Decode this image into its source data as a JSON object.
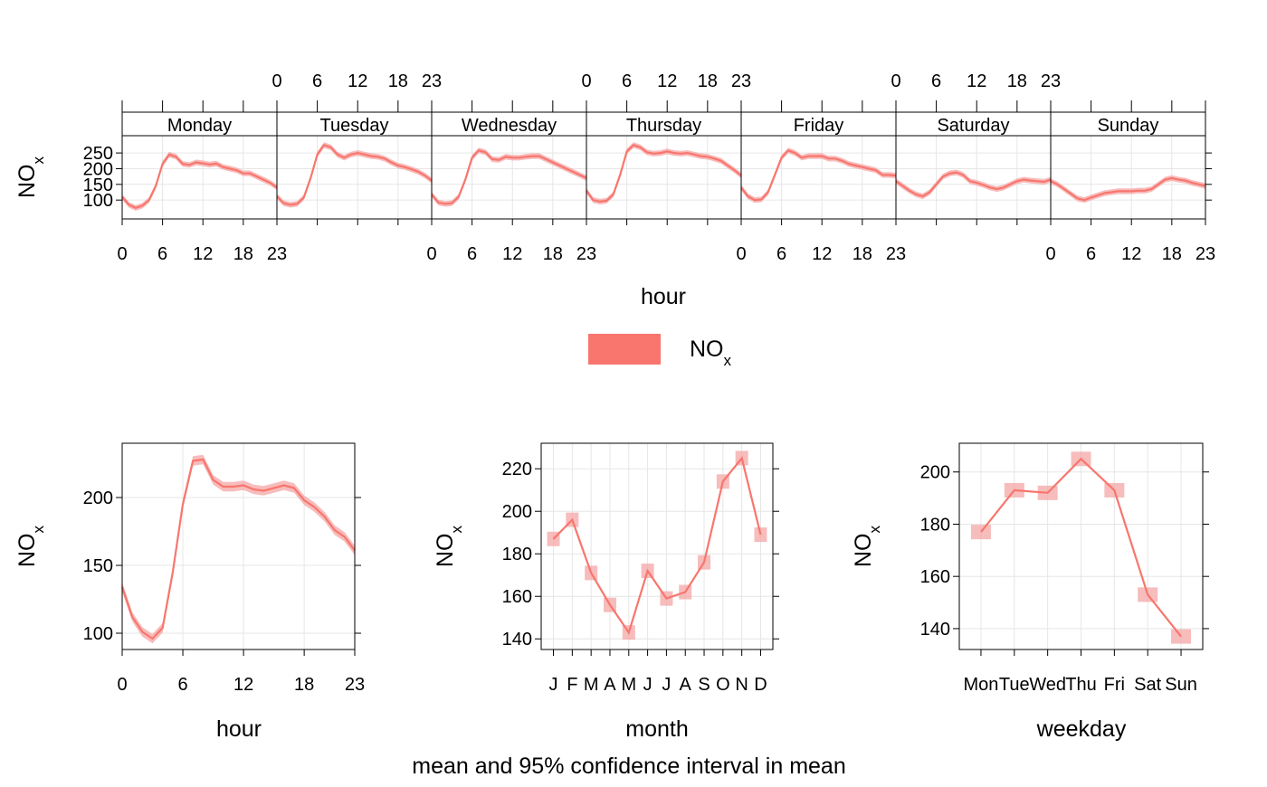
{
  "chart_data": [
    {
      "type": "line",
      "panel": "hour by weekday",
      "pollutant": "NO",
      "pollutant_sub": "x",
      "ylabel": "NO",
      "ylabel_sub": "x",
      "xlabel": "hour",
      "ylim": [
        40,
        305
      ],
      "yticks": [
        100,
        150,
        200,
        250
      ],
      "xlim": [
        0,
        23
      ],
      "xticks": [
        0,
        6,
        12,
        18,
        23
      ],
      "grid": true,
      "color": "#F8766D",
      "band_color": "#F4A6A6",
      "facets": [
        {
          "name": "Monday",
          "values": [
            110,
            85,
            75,
            82,
            100,
            145,
            215,
            245,
            238,
            215,
            212,
            220,
            217,
            213,
            216,
            205,
            200,
            195,
            185,
            185,
            175,
            165,
            155,
            140
          ]
        },
        {
          "name": "Tuesday",
          "values": [
            112,
            90,
            85,
            88,
            108,
            170,
            245,
            275,
            268,
            245,
            235,
            245,
            250,
            245,
            240,
            238,
            232,
            220,
            210,
            205,
            198,
            190,
            178,
            162
          ]
        },
        {
          "name": "Wednesday",
          "values": [
            118,
            92,
            88,
            90,
            110,
            165,
            235,
            258,
            252,
            230,
            228,
            238,
            235,
            235,
            238,
            240,
            240,
            230,
            220,
            210,
            200,
            190,
            180,
            170
          ]
        },
        {
          "name": "Thursday",
          "values": [
            130,
            100,
            95,
            98,
            118,
            180,
            255,
            275,
            268,
            252,
            248,
            250,
            255,
            250,
            248,
            250,
            245,
            240,
            238,
            232,
            225,
            210,
            195,
            178
          ]
        },
        {
          "name": "Friday",
          "values": [
            140,
            112,
            100,
            102,
            125,
            180,
            235,
            258,
            250,
            235,
            240,
            240,
            240,
            232,
            232,
            225,
            215,
            210,
            205,
            200,
            195,
            180,
            180,
            178
          ]
        },
        {
          "name": "Saturday",
          "values": [
            160,
            145,
            130,
            118,
            112,
            125,
            150,
            175,
            185,
            188,
            180,
            160,
            155,
            148,
            140,
            135,
            140,
            150,
            160,
            165,
            162,
            160,
            158,
            165
          ]
        },
        {
          "name": "Sunday",
          "values": [
            160,
            150,
            135,
            120,
            105,
            100,
            108,
            115,
            122,
            125,
            128,
            128,
            128,
            130,
            130,
            135,
            150,
            165,
            170,
            165,
            162,
            155,
            150,
            145
          ]
        }
      ]
    },
    {
      "type": "line",
      "panel": "hour",
      "xlabel": "hour",
      "ylabel": "NO",
      "ylabel_sub": "x",
      "x": [
        0,
        1,
        2,
        3,
        4,
        5,
        6,
        7,
        8,
        9,
        10,
        11,
        12,
        13,
        14,
        15,
        16,
        17,
        18,
        19,
        20,
        21,
        22,
        23
      ],
      "values": [
        134,
        112,
        101,
        96,
        104,
        145,
        195,
        227,
        228,
        213,
        208,
        208,
        209,
        206,
        205,
        207,
        209,
        207,
        198,
        193,
        186,
        176,
        171,
        161
      ],
      "ylim": [
        88,
        240
      ],
      "yticks": [
        100,
        150,
        200
      ],
      "xlim": [
        0,
        23
      ],
      "xticks": [
        0,
        6,
        12,
        18,
        23
      ],
      "grid": true,
      "color": "#F8766D",
      "band_color": "#F4A6A6"
    },
    {
      "type": "line",
      "panel": "month",
      "xlabel": "month",
      "ylabel": "NO",
      "ylabel_sub": "x",
      "categories": [
        "J",
        "F",
        "M",
        "A",
        "M",
        "J",
        "J",
        "A",
        "S",
        "O",
        "N",
        "D"
      ],
      "values": [
        187,
        196,
        171,
        156,
        143,
        172,
        159,
        162,
        176,
        214,
        225,
        189
      ],
      "ylim": [
        135,
        232
      ],
      "yticks": [
        140,
        160,
        180,
        200,
        220
      ],
      "grid": true,
      "color": "#F8766D",
      "band_color": "#F4A6A6"
    },
    {
      "type": "line",
      "panel": "weekday",
      "xlabel": "weekday",
      "ylabel": "NO",
      "ylabel_sub": "x",
      "categories": [
        "Mon",
        "Tue",
        "Wed",
        "Thu",
        "Fri",
        "Sat",
        "Sun"
      ],
      "values": [
        177,
        193,
        192,
        205,
        193,
        153,
        137
      ],
      "ylim": [
        132,
        211
      ],
      "yticks": [
        140,
        160,
        180,
        200
      ],
      "grid": true,
      "color": "#F8766D",
      "band_color": "#F4A6A6"
    }
  ],
  "legend": {
    "label": "NO",
    "label_sub": "x",
    "color": "#F8766D"
  },
  "subtitle": "mean and 95% confidence interval in mean"
}
